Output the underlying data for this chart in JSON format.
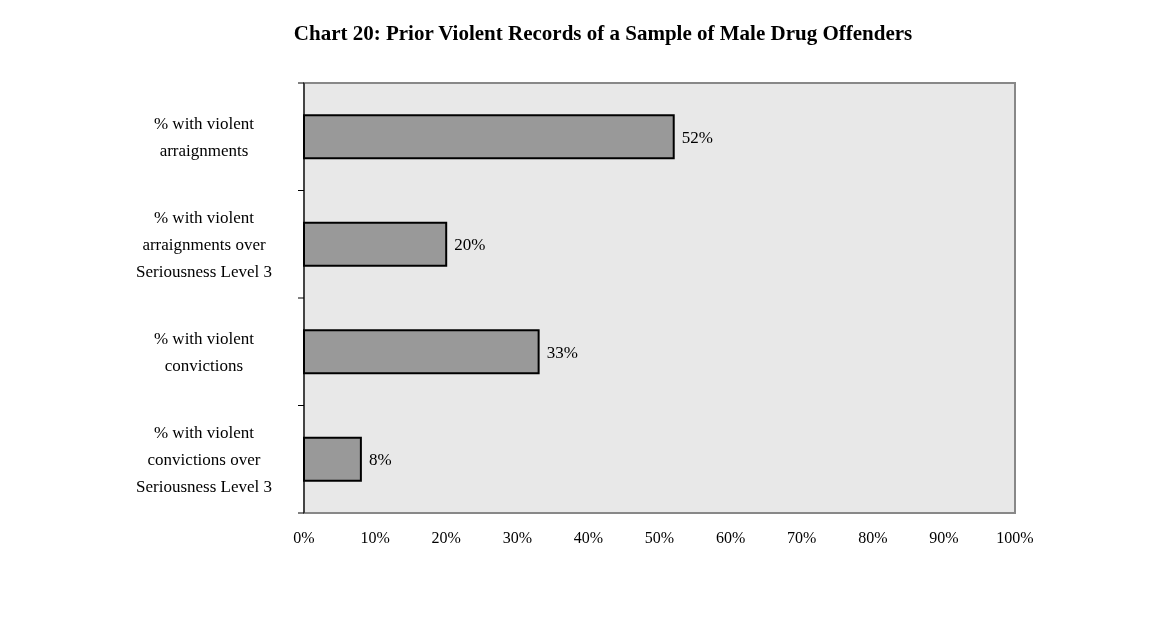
{
  "chart_data": {
    "type": "bar",
    "orientation": "horizontal",
    "title": "Chart 20: Prior Violent Records of a Sample of Male Drug Offenders",
    "categories": [
      "% with violent arraignments",
      "% with violent arraignments over Seriousness Level 3",
      "% with violent convictions",
      "% with violent convictions over Seriousness Level 3"
    ],
    "values": [
      52,
      20,
      33,
      8
    ],
    "value_labels": [
      "52%",
      "20%",
      "33%",
      "8%"
    ],
    "color": "#999999",
    "xlim": [
      0,
      100
    ],
    "xticks": [
      {
        "value": 0,
        "label": "0%"
      },
      {
        "value": 10,
        "label": "10%"
      },
      {
        "value": 20,
        "label": "20%"
      },
      {
        "value": 30,
        "label": "30%"
      },
      {
        "value": 40,
        "label": "40%"
      },
      {
        "value": 50,
        "label": "50%"
      },
      {
        "value": 60,
        "label": "60%"
      },
      {
        "value": 70,
        "label": "70%"
      },
      {
        "value": 80,
        "label": "80%"
      },
      {
        "value": 90,
        "label": "90%"
      },
      {
        "value": 100,
        "label": "100%"
      }
    ]
  }
}
